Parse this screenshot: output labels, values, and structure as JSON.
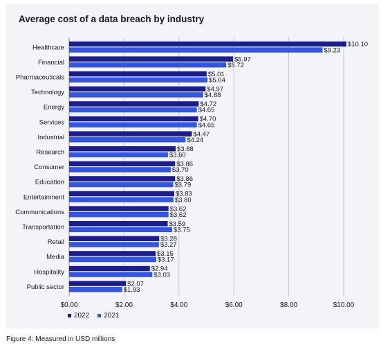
{
  "chart_data": {
    "type": "bar",
    "orientation": "horizontal",
    "title": "Average cost of a data breach by industry",
    "categories": [
      "Healthcare",
      "Financial",
      "Pharmaceuticals",
      "Technology",
      "Energy",
      "Services",
      "Industrial",
      "Research",
      "Consumer",
      "Education",
      "Entertainment",
      "Communications",
      "Transportation",
      "Retail",
      "Media",
      "Hospitality",
      "Public sector"
    ],
    "series": [
      {
        "name": "2022",
        "color": "#1c1c8c",
        "values": [
          10.1,
          5.97,
          5.01,
          4.97,
          4.72,
          4.7,
          4.47,
          3.88,
          3.86,
          3.86,
          3.83,
          3.62,
          3.59,
          3.28,
          3.15,
          2.94,
          2.07
        ],
        "labels": [
          "$10.10",
          "$5.97",
          "$5.01",
          "$4.97",
          "$4.72",
          "$4.70",
          "$4.47",
          "$3.88",
          "$3.86",
          "$3.86",
          "$3.83",
          "$3.62",
          "$3.59",
          "$3.28",
          "$3.15",
          "$2.94",
          "$2.07"
        ]
      },
      {
        "name": "2021",
        "color": "#3355e6",
        "values": [
          9.23,
          5.72,
          5.04,
          4.88,
          4.65,
          4.65,
          4.24,
          3.6,
          3.7,
          3.79,
          3.8,
          3.62,
          3.75,
          3.27,
          3.17,
          3.03,
          1.93
        ],
        "labels": [
          "$9.23",
          "$5.72",
          "$5.04",
          "$4.88",
          "$4.65",
          "$4.65",
          "$4.24",
          "$3.60",
          "$3.70",
          "$3.79",
          "$3.80",
          "$3.62",
          "$3.75",
          "$3.27",
          "$3.17",
          "$3.03",
          "$1.93"
        ]
      }
    ],
    "xlim": [
      0,
      10
    ],
    "xticks": [
      0,
      2,
      4,
      6,
      8,
      10
    ],
    "xtick_labels": [
      "$0.00",
      "$2.00",
      "$4.00",
      "$6.00",
      "$8.00",
      "$10.00"
    ],
    "xlabel": "",
    "ylabel": "",
    "grid": "vertical",
    "legend_position": "bottom-left"
  },
  "caption": "Figure 4: Measured in USD millions"
}
